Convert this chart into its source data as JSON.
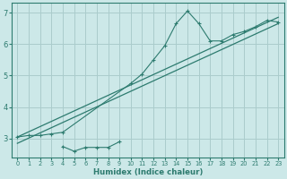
{
  "xlabel": "Humidex (Indice chaleur)",
  "bg_color": "#cce8e8",
  "grid_color": "#aacccc",
  "line_color": "#2d7b6f",
  "xlim": [
    -0.5,
    23.5
  ],
  "ylim": [
    2.4,
    7.3
  ],
  "xticks": [
    0,
    1,
    2,
    3,
    4,
    5,
    6,
    7,
    8,
    9,
    10,
    11,
    12,
    13,
    14,
    15,
    16,
    17,
    18,
    19,
    20,
    21,
    22,
    23
  ],
  "yticks": [
    3,
    4,
    5,
    6,
    7
  ],
  "main_line": [
    [
      0,
      3.05
    ],
    [
      1,
      3.1
    ],
    [
      2,
      3.1
    ],
    [
      3,
      3.15
    ],
    [
      4,
      3.2
    ],
    [
      10,
      4.75
    ],
    [
      11,
      5.05
    ],
    [
      12,
      5.5
    ],
    [
      13,
      5.95
    ],
    [
      14,
      6.65
    ],
    [
      15,
      7.05
    ],
    [
      16,
      6.65
    ],
    [
      17,
      6.1
    ],
    [
      18,
      6.1
    ],
    [
      19,
      6.3
    ],
    [
      20,
      6.4
    ],
    [
      21,
      6.55
    ],
    [
      22,
      6.75
    ],
    [
      23,
      6.7
    ]
  ],
  "lower_scatter": [
    [
      4,
      2.75
    ],
    [
      5,
      2.6
    ],
    [
      6,
      2.72
    ],
    [
      7,
      2.72
    ],
    [
      8,
      2.72
    ],
    [
      9,
      2.9
    ]
  ],
  "reg_line_upper": [
    [
      0,
      3.05
    ],
    [
      23,
      6.85
    ]
  ],
  "reg_line_lower": [
    [
      0,
      2.85
    ],
    [
      23,
      6.65
    ]
  ]
}
